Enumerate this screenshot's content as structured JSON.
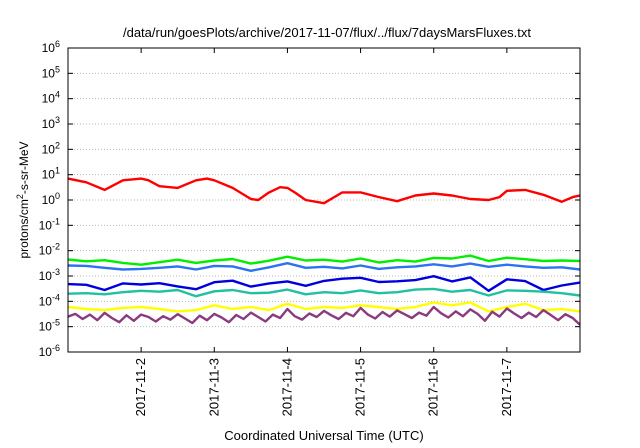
{
  "chart_data": {
    "type": "line",
    "title": "/data/run/goesPlots/archive/2017-11-07/flux/../flux/7daysMarsFluxes.txt",
    "xlabel": "Coordinated Universal Time (UTC)",
    "ylabel_base": "protons/cm",
    "ylabel_exp": "2",
    "ylabel_tail": "-s-sr-MeV",
    "yscale": "log",
    "ylim_exponents": [
      -6,
      6
    ],
    "ytick_base": "10",
    "ytick_exponents": [
      "-6",
      "-5",
      "-4",
      "-3",
      "-2",
      "-1",
      "0",
      "1",
      "2",
      "3",
      "4",
      "5",
      "6"
    ],
    "xlim_days": [
      0,
      7
    ],
    "xticks": [
      {
        "day": 1,
        "label": "2017-11-2"
      },
      {
        "day": 2,
        "label": "2017-11-3"
      },
      {
        "day": 3,
        "label": "2017-11-4"
      },
      {
        "day": 4,
        "label": "2017-11-5"
      },
      {
        "day": 5,
        "label": "2017-11-6"
      },
      {
        "day": 6,
        "label": "2017-11-7"
      }
    ],
    "series": [
      {
        "color": "#ff0000",
        "x": [
          0,
          0.25,
          0.5,
          0.75,
          1.0,
          1.1,
          1.25,
          1.5,
          1.75,
          1.9,
          2.0,
          2.25,
          2.5,
          2.6,
          2.75,
          2.9,
          3.0,
          3.1,
          3.25,
          3.5,
          3.75,
          4.0,
          4.25,
          4.5,
          4.75,
          5.0,
          5.25,
          5.5,
          5.75,
          5.9,
          6.0,
          6.25,
          6.5,
          6.75,
          6.9,
          7.0
        ],
        "y": [
          7,
          5,
          2.5,
          6,
          7,
          6,
          3.5,
          3,
          6,
          7,
          6,
          3,
          1.1,
          1,
          2,
          3.2,
          3,
          2,
          1,
          0.75,
          2,
          2,
          1.3,
          0.9,
          1.5,
          1.8,
          1.5,
          1.1,
          1,
          1.3,
          2.3,
          2.5,
          1.6,
          0.85,
          1.3,
          1.5
        ]
      },
      {
        "color": "#00ee00",
        "x": [
          0,
          0.25,
          0.5,
          0.75,
          1.0,
          1.25,
          1.5,
          1.75,
          2.0,
          2.25,
          2.5,
          2.75,
          3.0,
          3.25,
          3.5,
          3.75,
          4.0,
          4.25,
          4.5,
          4.75,
          5.0,
          5.25,
          5.5,
          5.75,
          6.0,
          6.25,
          6.5,
          6.75,
          7.0
        ],
        "y": [
          0.0045,
          0.0038,
          0.0042,
          0.0033,
          0.0028,
          0.0035,
          0.0044,
          0.0033,
          0.0041,
          0.0047,
          0.0031,
          0.004,
          0.0058,
          0.0041,
          0.0044,
          0.0037,
          0.0049,
          0.0034,
          0.0042,
          0.0037,
          0.0052,
          0.0049,
          0.0064,
          0.0039,
          0.0053,
          0.0046,
          0.0039,
          0.0041,
          0.0039
        ]
      },
      {
        "color": "#2b73f0",
        "x": [
          0,
          0.25,
          0.5,
          0.75,
          1.0,
          1.25,
          1.5,
          1.75,
          2.0,
          2.25,
          2.5,
          2.75,
          3.0,
          3.25,
          3.5,
          3.75,
          4.0,
          4.25,
          4.5,
          4.75,
          5.0,
          5.25,
          5.5,
          5.75,
          6.0,
          6.25,
          6.5,
          6.75,
          7.0
        ],
        "y": [
          0.0026,
          0.0025,
          0.0021,
          0.0018,
          0.0019,
          0.0021,
          0.0024,
          0.0018,
          0.0025,
          0.0024,
          0.0016,
          0.0022,
          0.0032,
          0.0021,
          0.0023,
          0.002,
          0.0026,
          0.0019,
          0.0022,
          0.0024,
          0.0029,
          0.0024,
          0.0031,
          0.0023,
          0.0028,
          0.0024,
          0.0021,
          0.0022,
          0.0018
        ]
      },
      {
        "color": "#0000dd",
        "x": [
          0,
          0.25,
          0.5,
          0.75,
          1.0,
          1.25,
          1.5,
          1.75,
          2.0,
          2.25,
          2.5,
          2.75,
          3.0,
          3.25,
          3.5,
          3.75,
          4.0,
          4.25,
          4.5,
          4.75,
          5.0,
          5.25,
          5.5,
          5.75,
          6.0,
          6.25,
          6.5,
          6.75,
          7.0
        ],
        "y": [
          0.00048,
          0.00045,
          0.00028,
          0.00051,
          0.00046,
          0.00052,
          0.00039,
          0.0003,
          0.00057,
          0.00065,
          0.00038,
          0.00051,
          0.00061,
          0.00041,
          0.00064,
          0.00078,
          0.00085,
          0.00058,
          0.00062,
          0.00069,
          0.00098,
          0.00061,
          0.00088,
          0.00026,
          0.00074,
          0.00063,
          0.00028,
          0.00042,
          0.00055
        ]
      },
      {
        "color": "#20c0a0",
        "x": [
          0,
          0.25,
          0.5,
          0.75,
          1.0,
          1.25,
          1.5,
          1.75,
          2.0,
          2.25,
          2.5,
          2.75,
          3.0,
          3.25,
          3.5,
          3.75,
          4.0,
          4.25,
          4.5,
          4.75,
          5.0,
          5.25,
          5.5,
          5.75,
          6.0,
          6.25,
          6.5,
          6.75,
          7.0
        ],
        "y": [
          0.0002,
          0.00021,
          0.00019,
          0.00023,
          0.00026,
          0.00024,
          0.00028,
          0.00016,
          0.00025,
          0.00028,
          0.00021,
          0.00022,
          0.00029,
          0.00019,
          0.00023,
          0.00021,
          0.00027,
          0.00021,
          0.00023,
          0.00029,
          0.00031,
          0.00024,
          0.00028,
          0.00017,
          0.00027,
          0.00026,
          0.00024,
          0.00021,
          0.00017
        ]
      },
      {
        "color": "#ffff00",
        "x": [
          0,
          0.25,
          0.5,
          0.75,
          1.0,
          1.25,
          1.5,
          1.75,
          2.0,
          2.25,
          2.5,
          2.75,
          3.0,
          3.25,
          3.5,
          3.75,
          4.0,
          4.25,
          4.5,
          4.75,
          5.0,
          5.25,
          5.5,
          5.75,
          6.0,
          6.25,
          6.5,
          6.75,
          7.0
        ],
        "y": [
          6e-05,
          5e-05,
          4.5e-05,
          5.5e-05,
          6e-05,
          5e-05,
          4e-05,
          4.5e-05,
          7e-05,
          5e-05,
          6e-05,
          4.5e-05,
          8e-05,
          5e-05,
          6e-05,
          5.5e-05,
          7e-05,
          6e-05,
          5e-05,
          6e-05,
          9e-05,
          7e-05,
          9e-05,
          4e-05,
          6e-05,
          8e-05,
          4.5e-05,
          5e-05,
          4e-05
        ]
      },
      {
        "color": "#8b3a80",
        "x": [
          0,
          0.1,
          0.2,
          0.3,
          0.4,
          0.5,
          0.6,
          0.7,
          0.8,
          0.9,
          1.0,
          1.1,
          1.2,
          1.3,
          1.4,
          1.5,
          1.6,
          1.7,
          1.8,
          1.9,
          2.0,
          2.1,
          2.2,
          2.3,
          2.4,
          2.5,
          2.6,
          2.7,
          2.8,
          2.9,
          3.0,
          3.1,
          3.2,
          3.3,
          3.4,
          3.5,
          3.6,
          3.7,
          3.8,
          3.9,
          4.0,
          4.1,
          4.2,
          4.3,
          4.4,
          4.5,
          4.6,
          4.7,
          4.8,
          4.9,
          5.0,
          5.1,
          5.2,
          5.3,
          5.4,
          5.5,
          5.6,
          5.7,
          5.8,
          5.9,
          6.0,
          6.1,
          6.2,
          6.3,
          6.4,
          6.5,
          6.6,
          6.7,
          6.8,
          6.9,
          7.0
        ],
        "y": [
          2.5e-05,
          3.2e-05,
          2e-05,
          3e-05,
          1.8e-05,
          3.5e-05,
          2.2e-05,
          1.5e-05,
          2.8e-05,
          1.7e-05,
          3e-05,
          2.4e-05,
          1.6e-05,
          2.6e-05,
          1.9e-05,
          3.1e-05,
          2.1e-05,
          1.4e-05,
          2.7e-05,
          1.8e-05,
          3.2e-05,
          2.3e-05,
          1.5e-05,
          2.9e-05,
          2e-05,
          3.6e-05,
          2.4e-05,
          1.6e-05,
          3e-05,
          2.2e-05,
          5e-05,
          2.6e-05,
          1.9e-05,
          3.3e-05,
          2.4e-05,
          4.2e-05,
          2.8e-05,
          2e-05,
          3.5e-05,
          2.6e-05,
          5.5e-05,
          3e-05,
          2.1e-05,
          3.8e-05,
          2.5e-05,
          4.4e-05,
          3.1e-05,
          2.2e-05,
          3.6e-05,
          2.7e-05,
          6e-05,
          3.4e-05,
          2.3e-05,
          4e-05,
          2.6e-05,
          4.8e-05,
          3.2e-05,
          1.7e-05,
          3.9e-05,
          2.5e-05,
          5.2e-05,
          3.3e-05,
          2.2e-05,
          3.6e-05,
          2.4e-05,
          4.5e-05,
          2.9e-05,
          1.8e-05,
          3.1e-05,
          2.2e-05,
          1.2e-05
        ]
      }
    ]
  }
}
